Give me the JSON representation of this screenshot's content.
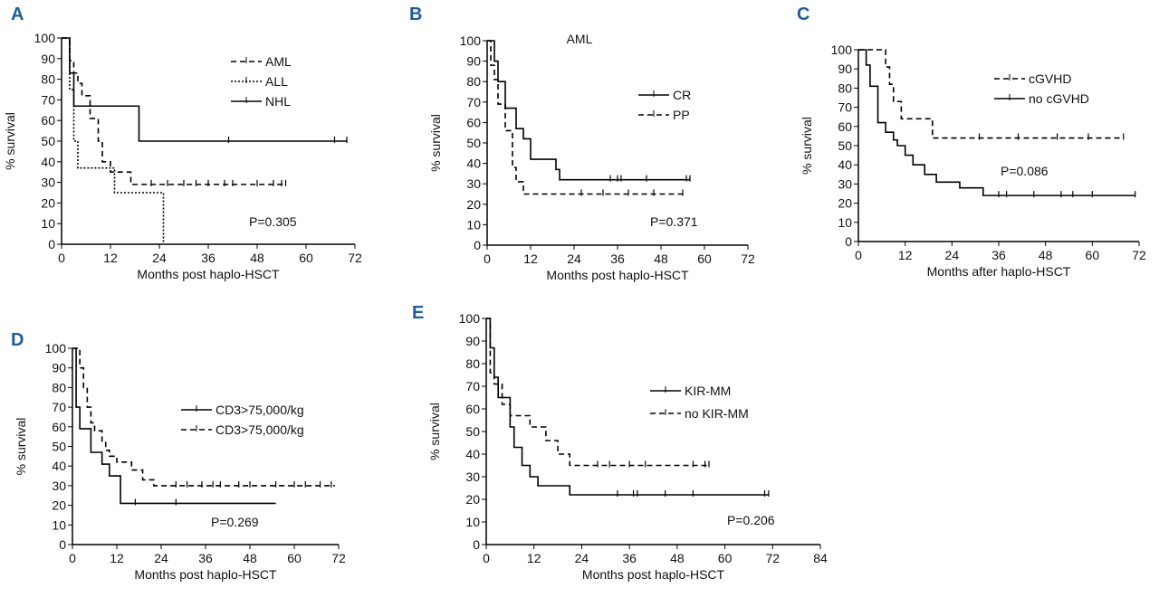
{
  "chart_data": [
    {
      "type": "line",
      "panel": "A",
      "x_label": "Months post haplo-HSCT",
      "y_label": "% survival",
      "annotation": "P=0.305",
      "xlim": [
        0,
        72
      ],
      "ylim": [
        0,
        100
      ],
      "xticks": [
        0,
        12,
        24,
        36,
        48,
        60,
        72
      ],
      "yticks": [
        0,
        10,
        20,
        30,
        40,
        50,
        60,
        70,
        80,
        90,
        100
      ],
      "legend": "upper right",
      "series": [
        {
          "name": "AML",
          "dash": "dashed",
          "color": "#000000",
          "x": [
            0,
            2,
            2,
            3,
            3,
            4,
            4,
            5,
            5,
            7,
            7,
            9,
            9,
            10,
            10,
            12,
            12,
            17,
            17,
            55
          ],
          "values": [
            100,
            100,
            89,
            89,
            83,
            83,
            78,
            78,
            72,
            72,
            61,
            61,
            50,
            50,
            40,
            40,
            35,
            35,
            29,
            29
          ],
          "censored": [
            22,
            26,
            30,
            33,
            36,
            40,
            42,
            48,
            52,
            54,
            55
          ]
        },
        {
          "name": "ALL",
          "dash": "dotted",
          "color": "#000000",
          "x": [
            0,
            2,
            2,
            3,
            3,
            4,
            4,
            13,
            13,
            25,
            25
          ],
          "values": [
            100,
            100,
            75,
            75,
            50,
            50,
            37,
            37,
            25,
            25,
            0
          ],
          "censored": []
        },
        {
          "name": "NHL",
          "dash": "solid",
          "color": "#000000",
          "x": [
            0,
            2,
            2,
            3,
            3,
            19,
            19,
            70
          ],
          "values": [
            100,
            100,
            83,
            83,
            67,
            67,
            50,
            50
          ],
          "censored": [
            41,
            67,
            70
          ]
        }
      ]
    },
    {
      "type": "line",
      "panel": "B",
      "subtitle": "AML",
      "x_label": "Months post haplo-HSCT",
      "y_label": "% survival",
      "annotation": "P=0.371",
      "xlim": [
        0,
        72
      ],
      "ylim": [
        0,
        100
      ],
      "xticks": [
        0,
        12,
        24,
        36,
        48,
        60,
        72
      ],
      "yticks": [
        0,
        10,
        20,
        30,
        40,
        50,
        60,
        70,
        80,
        90,
        100
      ],
      "legend": "center right",
      "series": [
        {
          "name": "CR",
          "dash": "solid",
          "color": "#000000",
          "x": [
            0,
            2,
            2,
            3,
            3,
            5,
            5,
            8,
            8,
            10,
            10,
            12,
            12,
            19,
            19,
            20,
            20,
            56
          ],
          "values": [
            100,
            100,
            90,
            90,
            80,
            80,
            67,
            67,
            57,
            57,
            52,
            52,
            42,
            42,
            37,
            37,
            32,
            32
          ],
          "censored": [
            34,
            36,
            37,
            44,
            55,
            56
          ]
        },
        {
          "name": "PP",
          "dash": "dashed",
          "color": "#000000",
          "x": [
            0,
            1,
            1,
            2,
            2,
            3,
            3,
            5,
            5,
            7,
            7,
            8,
            8,
            10,
            10,
            11,
            11,
            55
          ],
          "values": [
            100,
            100,
            88,
            88,
            81,
            81,
            69,
            69,
            56,
            56,
            38,
            38,
            31,
            31,
            25,
            25,
            25,
            25
          ],
          "censored": [
            26,
            32,
            39,
            46,
            54
          ]
        }
      ]
    },
    {
      "type": "line",
      "panel": "C",
      "x_label": "Months after haplo-HSCT",
      "y_label": "% survival",
      "annotation": "P=0.086",
      "xlim": [
        0,
        72
      ],
      "ylim": [
        0,
        100
      ],
      "xticks": [
        0,
        12,
        24,
        36,
        48,
        60,
        72
      ],
      "yticks": [
        0,
        10,
        20,
        30,
        40,
        50,
        60,
        70,
        80,
        90,
        100
      ],
      "legend": "upper right",
      "series": [
        {
          "name": "cGVHD",
          "dash": "dashed",
          "color": "#000000",
          "x": [
            0,
            7,
            7,
            8,
            8,
            9,
            9,
            11,
            11,
            19,
            19,
            68
          ],
          "values": [
            100,
            100,
            91,
            91,
            82,
            82,
            73,
            73,
            64,
            64,
            54,
            54
          ],
          "censored": [
            31,
            41,
            51,
            59,
            68
          ]
        },
        {
          "name": "no cGVHD",
          "dash": "solid",
          "color": "#000000",
          "x": [
            0,
            2,
            2,
            3,
            3,
            5,
            5,
            7,
            7,
            9,
            9,
            10,
            10,
            12,
            12,
            14,
            14,
            17,
            17,
            20,
            20,
            26,
            26,
            32,
            32,
            71
          ],
          "values": [
            100,
            100,
            92,
            92,
            81,
            81,
            62,
            62,
            57,
            57,
            53,
            53,
            50,
            50,
            45,
            45,
            40,
            40,
            35,
            35,
            31,
            31,
            28,
            28,
            24,
            24
          ],
          "censored": [
            36,
            38,
            45,
            52,
            55,
            60,
            71
          ]
        }
      ]
    },
    {
      "type": "line",
      "panel": "D",
      "x_label": "Months post haplo-HSCT",
      "y_label": "% survival",
      "annotation": "P=0.269",
      "xlim": [
        0,
        72
      ],
      "ylim": [
        0,
        100
      ],
      "xticks": [
        0,
        12,
        24,
        36,
        48,
        60,
        72
      ],
      "yticks": [
        0,
        10,
        20,
        30,
        40,
        50,
        60,
        70,
        80,
        90,
        100
      ],
      "legend": "center right",
      "series": [
        {
          "name": "CD3>75,000/kg",
          "dash": "solid",
          "color": "#000000",
          "x": [
            0,
            1,
            1,
            2,
            2,
            5,
            5,
            8,
            8,
            10,
            10,
            13,
            13,
            55
          ],
          "values": [
            100,
            100,
            70,
            70,
            59,
            59,
            47,
            47,
            41,
            41,
            35,
            35,
            21,
            21
          ],
          "censored": [
            17,
            28
          ]
        },
        {
          "name": "CD3>75,000/kg",
          "dash": "dashed",
          "color": "#000000",
          "x": [
            0,
            2,
            2,
            3,
            3,
            4,
            4,
            5,
            5,
            6,
            6,
            8,
            8,
            9,
            9,
            10,
            10,
            12,
            12,
            16,
            16,
            19,
            19,
            22,
            22,
            71
          ],
          "values": [
            100,
            100,
            90,
            90,
            80,
            80,
            70,
            70,
            62,
            62,
            58,
            58,
            52,
            52,
            48,
            48,
            45,
            45,
            42,
            42,
            38,
            38,
            33,
            33,
            30,
            30
          ],
          "censored": [
            28,
            31,
            35,
            38,
            40,
            45,
            48,
            55,
            60,
            63,
            67,
            70
          ]
        }
      ]
    },
    {
      "type": "line",
      "panel": "E",
      "x_label": "Months post haplo-HSCT",
      "y_label": "% survival",
      "annotation": "P=0.206",
      "xlim": [
        0,
        84
      ],
      "ylim": [
        0,
        100
      ],
      "xticks": [
        0,
        12,
        24,
        36,
        48,
        60,
        72,
        84
      ],
      "yticks": [
        0,
        10,
        20,
        30,
        40,
        50,
        60,
        70,
        80,
        90,
        100
      ],
      "legend": "center right",
      "series": [
        {
          "name": "KIR-MM",
          "dash": "solid",
          "color": "#000000",
          "x": [
            0,
            1,
            1,
            2,
            2,
            3,
            3,
            6,
            6,
            7,
            7,
            9,
            9,
            11,
            11,
            13,
            13,
            18,
            18,
            21,
            21,
            71
          ],
          "values": [
            100,
            100,
            87,
            87,
            74,
            74,
            65,
            65,
            52,
            52,
            43,
            43,
            35,
            35,
            30,
            30,
            26,
            26,
            26,
            26,
            22,
            22
          ],
          "censored": [
            33,
            37,
            38,
            45,
            52,
            70,
            71
          ]
        },
        {
          "name": "no KIR-MM",
          "dash": "dashed",
          "color": "#000000",
          "x": [
            0,
            1,
            1,
            2,
            2,
            4,
            4,
            6,
            6,
            11,
            11,
            15,
            15,
            18,
            18,
            21,
            21,
            26,
            26,
            56
          ],
          "values": [
            100,
            100,
            76,
            76,
            71,
            71,
            62,
            62,
            57,
            57,
            52,
            52,
            46,
            46,
            40,
            40,
            35,
            35,
            35,
            35
          ],
          "censored": [
            28,
            31,
            36,
            40,
            52,
            55,
            56
          ]
        }
      ]
    }
  ]
}
